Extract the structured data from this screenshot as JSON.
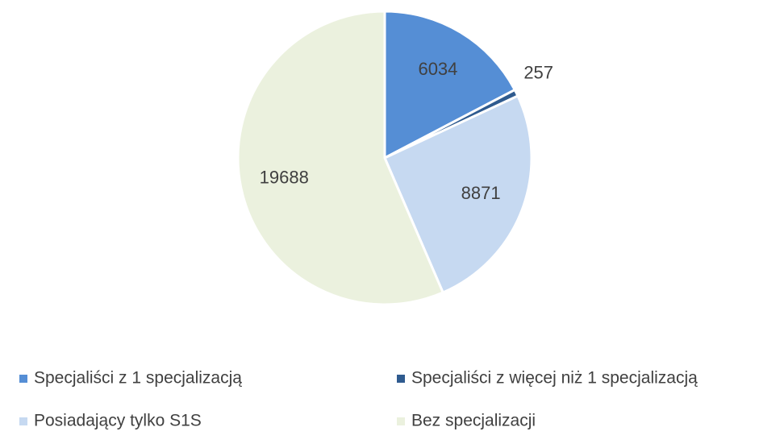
{
  "chart_data": {
    "type": "pie",
    "categories": [
      "Specjaliści z 1 specjalizacją",
      "Specjaliści z więcej niż 1 specjalizacją",
      "Posiadający tylko S1S",
      "Bez specjalizacji"
    ],
    "values": [
      6034,
      257,
      8871,
      19688
    ],
    "colors": [
      "#558ed5",
      "#2f5b8f",
      "#c6d9f1",
      "#ebf1de"
    ],
    "legend": "bottom"
  }
}
